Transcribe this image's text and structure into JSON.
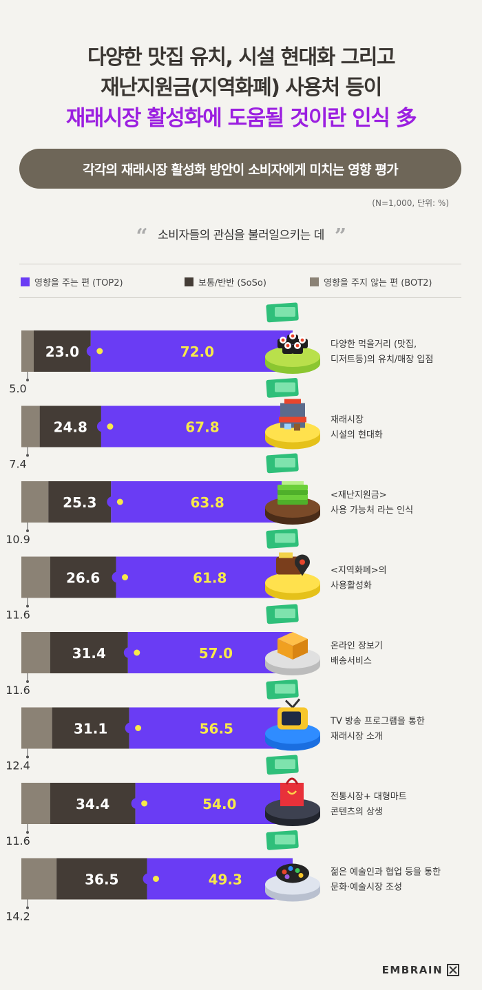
{
  "title": {
    "line1": "다양한 맛집 유치, 시설 현대화 그리고",
    "line2": "재난지원금(지역화폐) 사용처 등이",
    "line3": "재래시장 활성화에 도움될 것이란 인식 多"
  },
  "subtitle": "각각의 재래시장 활성화 방안이 소비자에게 미치는 영향 평가",
  "note": "(N=1,000, 단위: %)",
  "quote": {
    "open": "“",
    "text": "소비자들의 관심을 불러일으키는 데",
    "close": "”"
  },
  "brand": "EMBRAIN",
  "colors": {
    "top2": "#6a3cf4",
    "soso": "#443c36",
    "bot2": "#8b8275",
    "top2_value_text": "#f7e94a",
    "soso_value_text": "#ffffff",
    "title_accent": "#9b1fe0"
  },
  "chart_data": {
    "type": "bar",
    "orientation": "horizontal-stacked",
    "unit": "%",
    "legend_position": "top",
    "series": [
      {
        "name": "영향을 주는 편 (TOP2)",
        "values": [
          72.0,
          67.8,
          63.8,
          61.8,
          57.0,
          56.5,
          54.0,
          49.3
        ]
      },
      {
        "name": "보통/반반 (SoSo)",
        "values": [
          23.0,
          24.8,
          25.3,
          26.6,
          31.4,
          31.1,
          34.4,
          36.5
        ]
      },
      {
        "name": "영향을 주지 않는 편 (BOT2)",
        "values": [
          5.0,
          7.4,
          10.9,
          11.6,
          11.6,
          12.4,
          11.6,
          14.2
        ]
      }
    ],
    "value_labels": {
      "top2": [
        "72.0",
        "67.8",
        "63.8",
        "61.8",
        "57.0",
        "56.5",
        "54.0",
        "49.3"
      ],
      "soso": [
        "23.0",
        "24.8",
        "25.3",
        "26.6",
        "31.4",
        "31.1",
        "34.4",
        "36.5"
      ],
      "bot2": [
        "5.0",
        "7.4",
        "10.9",
        "11.6",
        "11.6",
        "12.4",
        "11.6",
        "14.2"
      ]
    },
    "categories": [
      {
        "line1": "다양한 먹을거리 (맛집,",
        "line2": "디저트등)의 유치/매장 입점",
        "icon": "sushi-icon"
      },
      {
        "line1": "재래시장",
        "line2": "시설의 현대화",
        "icon": "store-icon"
      },
      {
        "line1": "<재난지원금>",
        "line2": "사용 가능처 라는 인식",
        "icon": "cash-stack-icon"
      },
      {
        "line1": "<지역화폐>의",
        "line2": "사용활성화",
        "icon": "wallet-map-pin-icon"
      },
      {
        "line1": "온라인 장보기",
        "line2": "배송서비스",
        "icon": "delivery-box-icon"
      },
      {
        "line1": "TV 방송 프로그램을 통한",
        "line2": "재래시장 소개",
        "icon": "tv-icon"
      },
      {
        "line1": "전통시장+ 대형마트",
        "line2": "콘텐츠의 상생",
        "icon": "shopping-bag-icon"
      },
      {
        "line1": "젊은 예술인과 협업 등을 통한",
        "line2": "문화·예술시장 조성",
        "icon": "paint-palette-icon"
      }
    ]
  }
}
